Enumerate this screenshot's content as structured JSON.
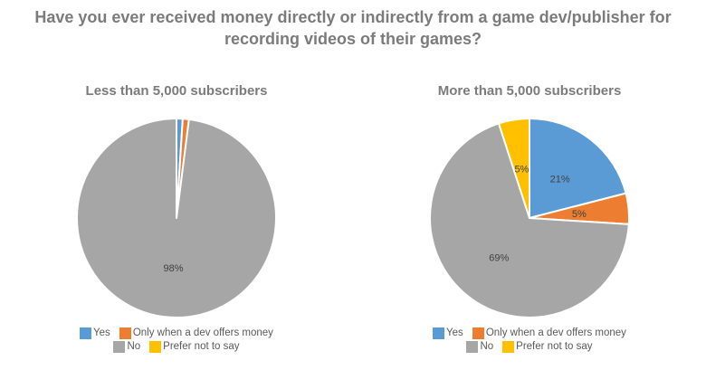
{
  "title": "Have you ever received money directly or indirectly from a game dev/publisher for recording videos of their games?",
  "colors": {
    "yes": "#5B9BD5",
    "only_when_dev_offers_money": "#ED7D31",
    "no": "#A6A6A6",
    "prefer_not_to_say": "#FFC000",
    "title_text": "#7B7B7B",
    "slice_label_text": "#404040",
    "legend_text": "#595959",
    "slice_border": "#FFFFFF"
  },
  "legend": {
    "rows": [
      [
        0,
        1
      ],
      [
        2,
        3
      ]
    ],
    "items": [
      {
        "label": "Yes",
        "color": "#5B9BD5"
      },
      {
        "label": "Only when a dev offers money",
        "color": "#ED7D31"
      },
      {
        "label": "No",
        "color": "#A6A6A6"
      },
      {
        "label": "Prefer not to say",
        "color": "#FFC000"
      }
    ]
  },
  "chart_data": [
    {
      "type": "pie",
      "title": "Less than 5,000 subscribers",
      "categories": [
        "Yes",
        "Only when a dev offers money",
        "No",
        "Prefer not to say"
      ],
      "values": [
        1,
        1,
        98,
        0
      ],
      "labels": [
        "",
        "",
        "98%",
        ""
      ],
      "start_angle_deg": 0,
      "direction": "clockwise",
      "label_radius_fraction": 0.5,
      "legend_position": "bottom"
    },
    {
      "type": "pie",
      "title": "More than 5,000 subscribers",
      "categories": [
        "Yes",
        "Only when a dev offers money",
        "No",
        "Prefer not to say"
      ],
      "values": [
        21,
        5,
        69,
        5
      ],
      "labels": [
        "21%",
        "5%",
        "69%",
        "5%"
      ],
      "start_angle_deg": 0,
      "direction": "clockwise",
      "label_radius_fraction": 0.5,
      "legend_position": "bottom"
    }
  ]
}
